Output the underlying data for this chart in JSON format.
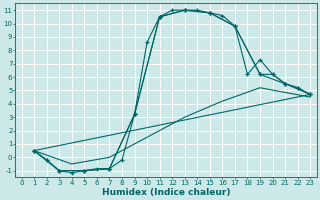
{
  "xlabel": "Humidex (Indice chaleur)",
  "background_color": "#cce8e8",
  "grid_color": "#ffffff",
  "line_color": "#006666",
  "xlim": [
    -0.5,
    23.5
  ],
  "ylim": [
    -1.5,
    11.5
  ],
  "xticks": [
    0,
    1,
    2,
    3,
    4,
    5,
    6,
    7,
    8,
    9,
    10,
    11,
    12,
    13,
    14,
    15,
    16,
    17,
    18,
    19,
    20,
    21,
    22,
    23
  ],
  "yticks": [
    -1,
    0,
    1,
    2,
    3,
    4,
    5,
    6,
    7,
    8,
    9,
    10,
    11
  ],
  "curve1_x": [
    1,
    2,
    3,
    4,
    5,
    6,
    7,
    8,
    9,
    10,
    11,
    12,
    13,
    14,
    15,
    16,
    17,
    18,
    19,
    20,
    21,
    22,
    23
  ],
  "curve1_y": [
    0.5,
    -0.2,
    -1.0,
    -1.15,
    -1.0,
    -0.85,
    -0.85,
    -0.2,
    3.2,
    8.6,
    10.5,
    11.0,
    11.0,
    11.0,
    10.8,
    10.6,
    9.8,
    6.2,
    7.3,
    6.2,
    5.5,
    5.2,
    4.7
  ],
  "curve2_x": [
    1,
    2,
    3,
    5,
    7,
    9,
    11,
    13,
    15,
    17,
    19,
    20,
    21,
    22,
    23
  ],
  "curve2_y": [
    0.5,
    -0.2,
    -1.0,
    -1.0,
    -0.85,
    3.2,
    10.5,
    11.0,
    10.8,
    9.8,
    6.2,
    6.2,
    5.5,
    5.2,
    4.7
  ],
  "curve3_x": [
    1,
    3,
    5,
    7,
    9,
    11,
    13,
    15,
    17,
    19,
    21,
    23
  ],
  "curve3_y": [
    0.5,
    -1.0,
    -1.0,
    -0.85,
    3.2,
    10.5,
    11.0,
    10.8,
    9.8,
    6.2,
    5.5,
    4.7
  ],
  "line1_x": [
    1,
    23
  ],
  "line1_y": [
    0.5,
    4.7
  ],
  "line2_x": [
    1,
    4,
    7,
    10,
    13,
    16,
    19,
    23
  ],
  "line2_y": [
    0.5,
    -0.5,
    0.0,
    1.5,
    3.0,
    4.2,
    5.2,
    4.5
  ]
}
